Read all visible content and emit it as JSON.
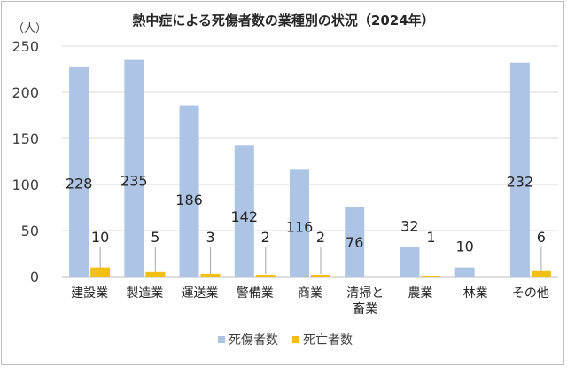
{
  "chart_data": {
    "type": "bar",
    "title": "熱中症による死傷者数の業種別の状況（2024年）",
    "y_unit_label": "（人）",
    "xlabel": "",
    "ylabel": "",
    "ylim": [
      0,
      250
    ],
    "yticks": [
      "0",
      "50",
      "100",
      "150",
      "200",
      "250"
    ],
    "categories": [
      [
        "建設業"
      ],
      [
        "製造業"
      ],
      [
        "運送業"
      ],
      [
        "警備業"
      ],
      [
        "商業"
      ],
      [
        "清掃と",
        "畜業"
      ],
      [
        "農業"
      ],
      [
        "林業"
      ],
      [
        "その他"
      ]
    ],
    "series": [
      {
        "name": "死傷者数",
        "color": "#aec4e4",
        "values": [
          228,
          235,
          186,
          142,
          116,
          76,
          32,
          10,
          232
        ],
        "labels": [
          "228",
          "235",
          "186",
          "142",
          "116",
          "76",
          "32",
          "10",
          "232"
        ]
      },
      {
        "name": "死亡者数",
        "color": "#f2bf16",
        "values": [
          10,
          5,
          3,
          2,
          2,
          0,
          1,
          0,
          6
        ],
        "labels": [
          "10",
          "5",
          "3",
          "2",
          "2",
          "",
          "1",
          "",
          "6"
        ]
      }
    ],
    "grid": true,
    "legend_position": "bottom"
  }
}
